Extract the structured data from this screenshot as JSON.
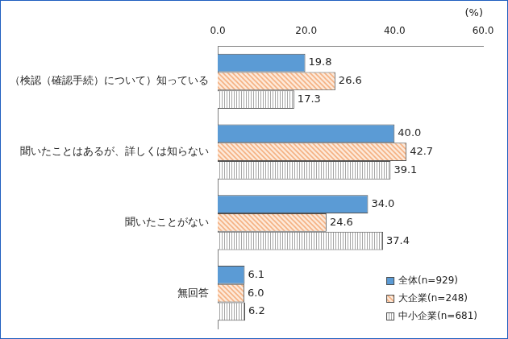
{
  "chart_data": {
    "type": "bar",
    "orientation": "horizontal",
    "xlabel": "(%)",
    "categories": [
      "（検認（確認手続）について）知っている",
      "聞いたことはあるが、詳しくは知らない",
      "聞いたことがない",
      "無回答"
    ],
    "series": [
      {
        "name": "全体(n=929)",
        "color": "#5b9bd5",
        "values": [
          19.8,
          40.0,
          34.0,
          6.1
        ],
        "value_labels": [
          "19.8",
          "40.0",
          "34.0",
          "6.1"
        ]
      },
      {
        "name": "大企業(n=248)",
        "color": "#f4b183",
        "values": [
          26.6,
          42.7,
          24.6,
          6.0
        ],
        "value_labels": [
          "26.6",
          "42.7",
          "24.6",
          "6.0"
        ]
      },
      {
        "name": "中小企業(n=681)",
        "color": "#a6a6a6",
        "values": [
          17.3,
          39.1,
          37.4,
          6.2
        ],
        "value_labels": [
          "17.3",
          "39.1",
          "37.4",
          "6.2"
        ]
      }
    ],
    "xlim": [
      0,
      60
    ],
    "xticks": [
      {
        "value": 0,
        "label": "0.0"
      },
      {
        "value": 20,
        "label": "20.0"
      },
      {
        "value": 40,
        "label": "40.0"
      },
      {
        "value": 60,
        "label": "60.0"
      }
    ],
    "grid": false,
    "legend": "lower right",
    "data_labels": true
  }
}
